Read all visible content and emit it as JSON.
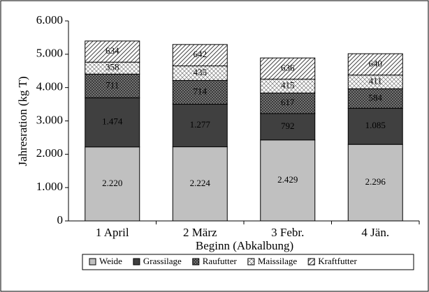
{
  "chart_data": {
    "type": "stacked_bar",
    "y_label": "Jahresration (kg T)",
    "x_label": "Beginn (Abkalbung)",
    "categories": [
      "1 April",
      "2 März",
      "3 Febr.",
      "4 Jän."
    ],
    "series": [
      {
        "name": "Weide",
        "color": "#c0c0c0",
        "values": [
          2220,
          2224,
          2429,
          2296
        ],
        "value_labels": [
          "2.220",
          "2.224",
          "2.429",
          "2.296"
        ]
      },
      {
        "name": "Grassilage",
        "color": "#404040",
        "values": [
          1474,
          1277,
          792,
          1085
        ],
        "value_labels": [
          "1.474",
          "1.277",
          "792",
          "1.085"
        ]
      },
      {
        "name": "Raufutter",
        "color": "#7a7a7a",
        "pattern": "crosshatch",
        "values": [
          711,
          714,
          617,
          584
        ],
        "value_labels": [
          "711",
          "714",
          "617",
          "584"
        ]
      },
      {
        "name": "Maissilage",
        "color": "#ffffff",
        "pattern": "cross",
        "values": [
          358,
          435,
          415,
          411
        ],
        "value_labels": [
          "358",
          "435",
          "415",
          "411"
        ]
      },
      {
        "name": "Kraftfutter",
        "color": "#ffffff",
        "pattern": "diagonal",
        "values": [
          634,
          642,
          636,
          640
        ],
        "value_labels": [
          "634",
          "642",
          "636",
          "640"
        ]
      }
    ],
    "ylim": [
      0,
      6000
    ],
    "yticks": [
      0,
      {
        "value": 1000,
        "label": "1.000"
      },
      {
        "value": 2000,
        "label": "2.000"
      },
      {
        "value": 3000,
        "label": "3.000"
      },
      {
        "value": 4000,
        "label": "4.000"
      },
      {
        "value": 5000,
        "label": "5.000"
      },
      {
        "value": 6000,
        "label": "6.000"
      }
    ],
    "grid": false
  }
}
